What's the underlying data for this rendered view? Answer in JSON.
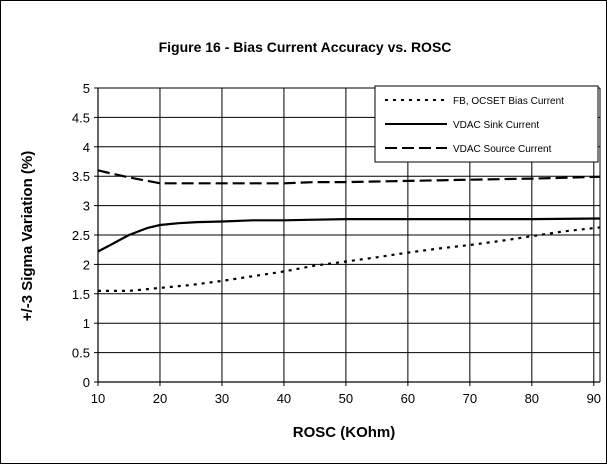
{
  "chart_data": {
    "type": "line",
    "title": "Figure 16 - Bias Current Accuracy vs. ROSC",
    "xlabel": "ROSC (KOhm)",
    "ylabel": "+/-3 Sigma Variation (%)",
    "xlim": [
      10,
      91
    ],
    "ylim": [
      0,
      5
    ],
    "x_ticks": [
      10,
      20,
      30,
      40,
      50,
      60,
      70,
      80,
      90
    ],
    "x_tick_labels": [
      "10",
      "20",
      "30",
      "40",
      "50",
      "60",
      "70",
      "80",
      "90"
    ],
    "y_ticks": [
      0,
      0.5,
      1,
      1.5,
      2,
      2.5,
      3,
      3.5,
      4,
      4.5,
      5
    ],
    "y_tick_labels": [
      "0",
      "0.5",
      "1",
      "1.5",
      "2",
      "2.5",
      "3",
      "3.5",
      "4",
      "4.5",
      "5"
    ],
    "grid": true,
    "legend_position": "top-right",
    "series": [
      {
        "name": "FB, OCSET Bias Current",
        "style": "dotted",
        "x": [
          10,
          15,
          20,
          25,
          30,
          35,
          40,
          45,
          50,
          55,
          60,
          65,
          70,
          75,
          80,
          85,
          91
        ],
        "y": [
          1.55,
          1.55,
          1.6,
          1.65,
          1.72,
          1.8,
          1.88,
          1.98,
          2.05,
          2.12,
          2.2,
          2.27,
          2.33,
          2.4,
          2.48,
          2.56,
          2.63
        ]
      },
      {
        "name": "VDAC Sink Current",
        "style": "solid",
        "x": [
          10,
          12,
          15,
          18,
          20,
          23,
          26,
          30,
          35,
          40,
          45,
          50,
          55,
          60,
          70,
          80,
          91
        ],
        "y": [
          2.22,
          2.33,
          2.5,
          2.62,
          2.67,
          2.7,
          2.72,
          2.73,
          2.75,
          2.75,
          2.76,
          2.77,
          2.77,
          2.77,
          2.77,
          2.77,
          2.78
        ]
      },
      {
        "name": "VDAC Source Current",
        "style": "dashed",
        "x": [
          10,
          12,
          15,
          18,
          20,
          25,
          30,
          35,
          40,
          45,
          50,
          55,
          60,
          70,
          80,
          91
        ],
        "y": [
          3.6,
          3.55,
          3.48,
          3.42,
          3.38,
          3.38,
          3.38,
          3.38,
          3.38,
          3.4,
          3.4,
          3.41,
          3.42,
          3.44,
          3.46,
          3.49
        ]
      }
    ],
    "colors": {
      "line": "#000000",
      "grid": "#000000",
      "background": "#ffffff"
    }
  }
}
